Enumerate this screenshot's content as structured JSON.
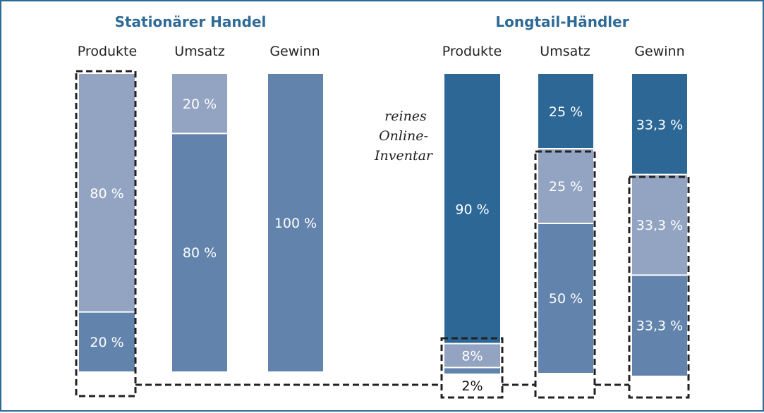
{
  "chart_data": {
    "type": "bar",
    "stacked": true,
    "unit": "%",
    "colors": {
      "light": "#93a4c3",
      "medium": "#6283ab",
      "dark": "#2c6796",
      "outline": "#222222"
    },
    "groups": [
      {
        "title": "Stationärer Handel",
        "columns": [
          {
            "label": "Produkte",
            "segments": [
              {
                "value": 20,
                "label": "20 %",
                "tone": "medium"
              },
              {
                "value": 80,
                "label": "80 %",
                "tone": "light"
              }
            ]
          },
          {
            "label": "Umsatz",
            "segments": [
              {
                "value": 80,
                "label": "80 %",
                "tone": "medium"
              },
              {
                "value": 20,
                "label": "20 %",
                "tone": "light"
              }
            ]
          },
          {
            "label": "Gewinn",
            "segments": [
              {
                "value": 100,
                "label": "100 %",
                "tone": "medium"
              }
            ]
          }
        ]
      },
      {
        "title": "Longtail-Händler",
        "annotation": [
          "reines",
          "Online-",
          "Inventar"
        ],
        "columns": [
          {
            "label": "Produkte",
            "segments": [
              {
                "value": 2,
                "label": "2%",
                "tone": "medium"
              },
              {
                "value": 8,
                "label": "8%",
                "tone": "light"
              },
              {
                "value": 90,
                "label": "90 %",
                "tone": "dark"
              }
            ]
          },
          {
            "label": "Umsatz",
            "segments": [
              {
                "value": 50,
                "label": "50 %",
                "tone": "medium"
              },
              {
                "value": 25,
                "label": "25 %",
                "tone": "light"
              },
              {
                "value": 25,
                "label": "25 %",
                "tone": "dark"
              }
            ]
          },
          {
            "label": "Gewinn",
            "segments": [
              {
                "value": 33.3,
                "label": "33,3 %",
                "tone": "medium"
              },
              {
                "value": 33.3,
                "label": "33,3 %",
                "tone": "light"
              },
              {
                "value": 33.3,
                "label": "33,3 %",
                "tone": "dark"
              }
            ]
          }
        ]
      }
    ]
  }
}
